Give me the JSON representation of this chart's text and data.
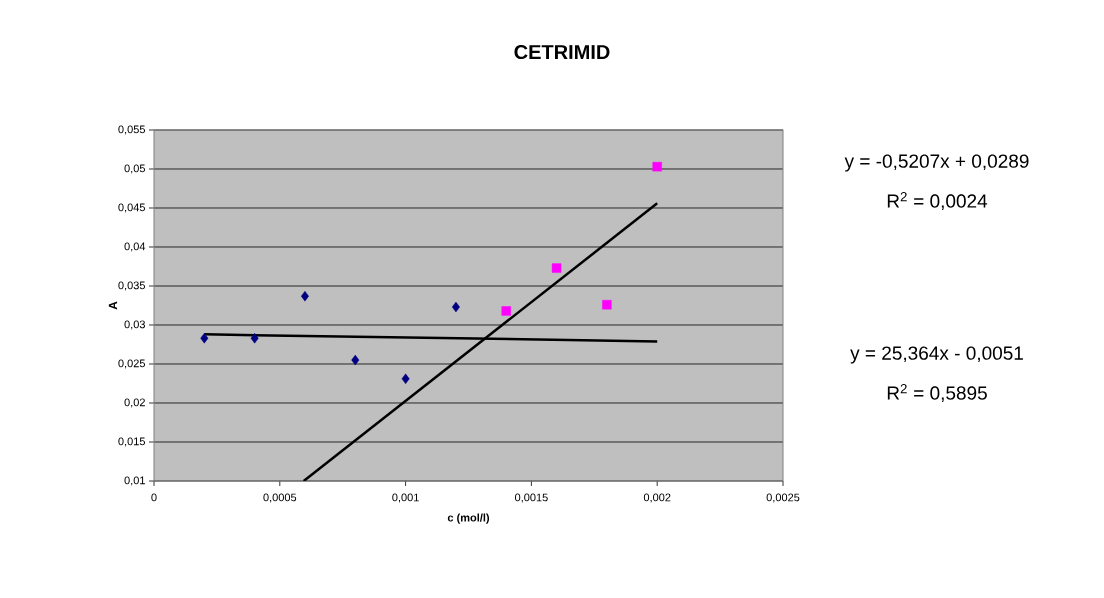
{
  "chart_data": {
    "type": "scatter",
    "title": "CETRIMID",
    "xlabel": "c (mol/l)",
    "ylabel": "A",
    "xlim": [
      0,
      0.0025
    ],
    "ylim": [
      0.01,
      0.055
    ],
    "xticks": [
      0,
      {
        "value": 0.0005,
        "label": "0,0005"
      },
      {
        "value": 0.001,
        "label": "0,001"
      },
      {
        "value": 0.0015,
        "label": "0,0015"
      },
      {
        "value": 0.002,
        "label": "0,002"
      },
      {
        "value": 0.0025,
        "label": "0,0025"
      }
    ],
    "yticks": [
      {
        "value": 0.01,
        "label": "0,01"
      },
      {
        "value": 0.015,
        "label": "0,015"
      },
      {
        "value": 0.02,
        "label": "0,02"
      },
      {
        "value": 0.025,
        "label": "0,025"
      },
      {
        "value": 0.03,
        "label": "0,03"
      },
      {
        "value": 0.035,
        "label": "0,035"
      },
      {
        "value": 0.04,
        "label": "0,04"
      },
      {
        "value": 0.045,
        "label": "0,045"
      },
      {
        "value": 0.05,
        "label": "0,05"
      },
      {
        "value": 0.055,
        "label": "0,055"
      }
    ],
    "grid": "y",
    "series": [
      {
        "marker": "diamond",
        "color": "#000080",
        "x": [
          0.0002,
          0.0004,
          0.0006,
          0.0008,
          0.001,
          0.0012
        ],
        "values": [
          0.0283,
          0.0283,
          0.0337,
          0.0255,
          0.0231,
          0.0323
        ]
      },
      {
        "marker": "square",
        "color": "#ff00ff",
        "x": [
          0.0014,
          0.0016,
          0.0018,
          0.002
        ],
        "values": [
          0.0318,
          0.0373,
          0.0326,
          0.0503
        ]
      },
      {
        "type": "line",
        "marker": "none",
        "color": "#000000",
        "x": [
          0.0002,
          0.002
        ],
        "values": [
          0.0288,
          0.0279
        ]
      },
      {
        "type": "line",
        "marker": "none",
        "color": "#000000",
        "x": [
          0.000595,
          0.002
        ],
        "values": [
          0.01,
          0.0456
        ]
      }
    ],
    "annotations": [
      "y = -0,5207x + 0,0289",
      "R$^{2}$ = 0,0024",
      "y = 25,364x - 0,0051",
      "R$^{2}$ = 0,5895"
    ]
  }
}
